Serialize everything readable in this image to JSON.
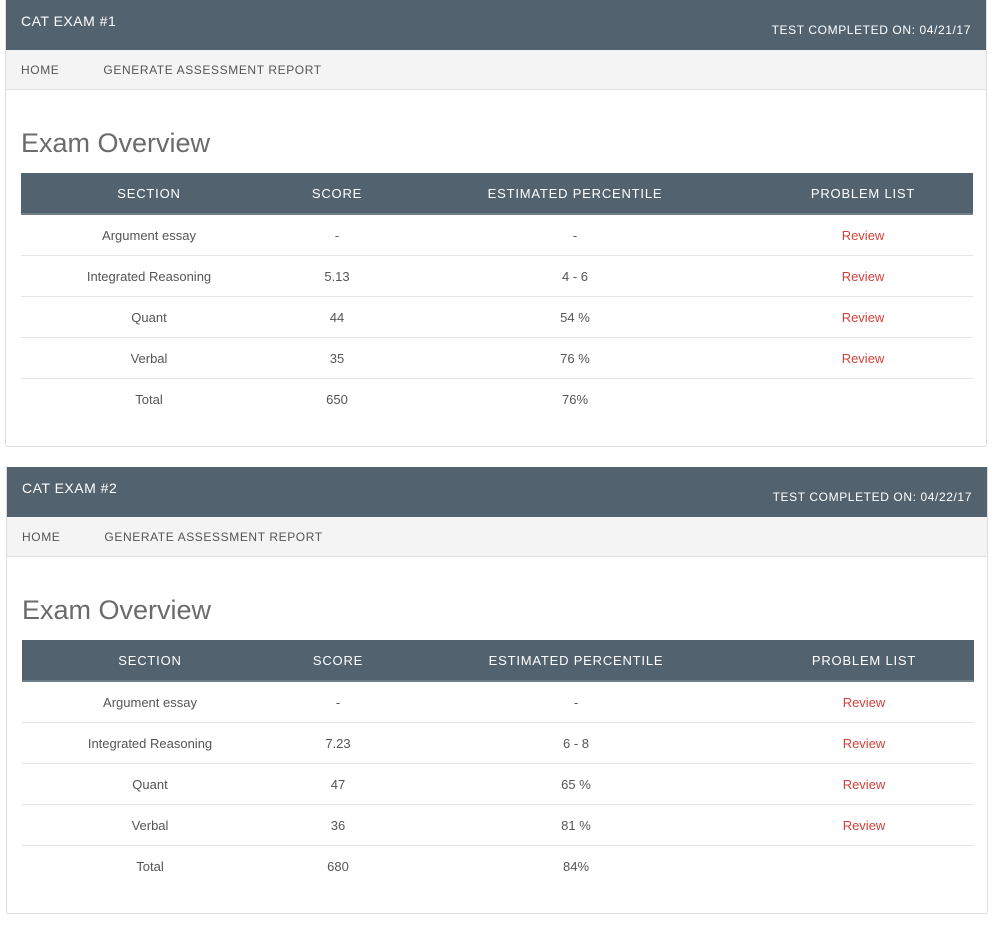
{
  "colors": {
    "header": "#52626e",
    "review_link": "#d0413b"
  },
  "exams": [
    {
      "title": "CAT EXAM #1",
      "completed": "TEST COMPLETED ON: 04/21/17",
      "nav": [
        "HOME",
        "GENERATE ASSESSMENT REPORT"
      ],
      "overview_title": "Exam Overview",
      "columns": [
        "SECTION",
        "SCORE",
        "ESTIMATED PERCENTILE",
        "PROBLEM LIST"
      ],
      "rows": [
        {
          "section": "Argument essay",
          "score": "-",
          "percentile": "-",
          "link": "Review"
        },
        {
          "section": "Integrated Reasoning",
          "score": "5.13",
          "percentile": "4 - 6",
          "link": "Review"
        },
        {
          "section": "Quant",
          "score": "44",
          "percentile": "54 %",
          "link": "Review"
        },
        {
          "section": "Verbal",
          "score": "35",
          "percentile": "76 %",
          "link": "Review"
        },
        {
          "section": "Total",
          "score": "650",
          "percentile": "76%",
          "link": ""
        }
      ]
    },
    {
      "title": "CAT EXAM #2",
      "completed": "TEST COMPLETED ON: 04/22/17",
      "nav": [
        "HOME",
        "GENERATE ASSESSMENT REPORT"
      ],
      "overview_title": "Exam Overview",
      "columns": [
        "SECTION",
        "SCORE",
        "ESTIMATED PERCENTILE",
        "PROBLEM LIST"
      ],
      "rows": [
        {
          "section": "Argument essay",
          "score": "-",
          "percentile": "-",
          "link": "Review"
        },
        {
          "section": "Integrated Reasoning",
          "score": "7.23",
          "percentile": "6 - 8",
          "link": "Review"
        },
        {
          "section": "Quant",
          "score": "47",
          "percentile": "65 %",
          "link": "Review"
        },
        {
          "section": "Verbal",
          "score": "36",
          "percentile": "81 %",
          "link": "Review"
        },
        {
          "section": "Total",
          "score": "680",
          "percentile": "84%",
          "link": ""
        }
      ]
    }
  ]
}
